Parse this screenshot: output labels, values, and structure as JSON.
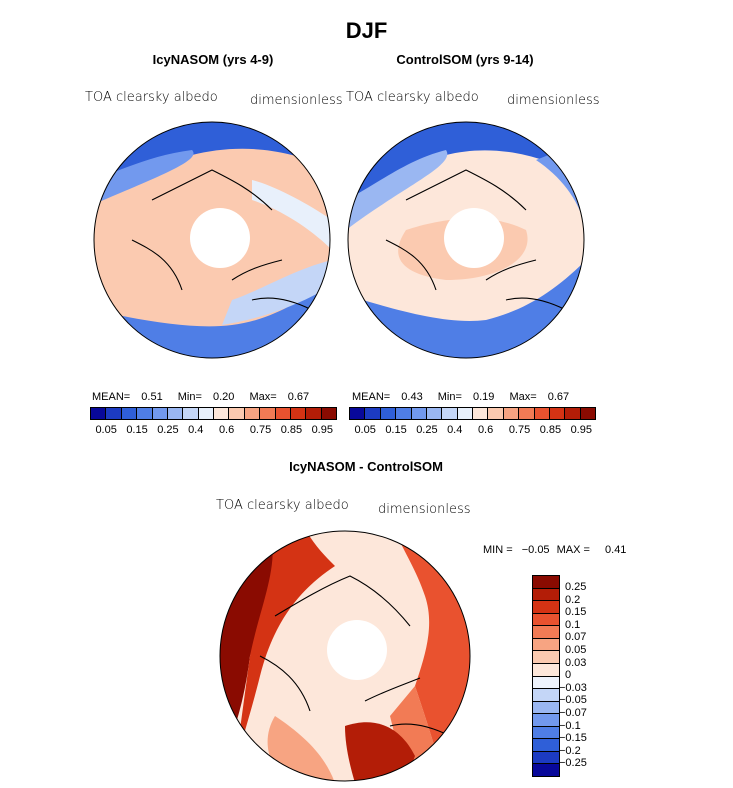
{
  "title": "DJF",
  "panels": [
    {
      "name": "IcyNASOM (yrs 4-9)",
      "variable": "TOA clearsky albedo",
      "units": "dimensionless",
      "mean_label": "MEAN=",
      "mean": "0.51",
      "min_label": "Min=",
      "min": "0.20",
      "max_label": "Max=",
      "max": "0.67"
    },
    {
      "name": "ControlSOM (yrs 9-14)",
      "variable": "TOA clearsky albedo",
      "units": "dimensionless",
      "mean_label": "MEAN=",
      "mean": "0.43",
      "min_label": "Min=",
      "min": "0.19",
      "max_label": "Max=",
      "max": "0.67"
    }
  ],
  "colorbar_top": {
    "colors": [
      "#08089a",
      "#1c3bc2",
      "#2f5fd8",
      "#4f7ee6",
      "#7299ee",
      "#9ab7f2",
      "#c4d6f7",
      "#e8f0fb",
      "#fde7da",
      "#fbcab0",
      "#f7a482",
      "#f27b55",
      "#e9522f",
      "#d43314",
      "#b31d07",
      "#8a0b01"
    ],
    "tick_labels": [
      "0.05",
      "0.15",
      "0.25",
      "0.4",
      "0.6",
      "0.75",
      "0.85",
      "0.95"
    ]
  },
  "diff": {
    "name": "IcyNASOM - ControlSOM",
    "variable": "TOA clearsky albedo",
    "units": "dimensionless",
    "min_label": "MIN =",
    "min": "−0.05",
    "max_label": "MAX =",
    "max": "0.41",
    "colors": [
      "#8a0b01",
      "#b31d07",
      "#d43314",
      "#e9522f",
      "#f27b55",
      "#f7a482",
      "#fbcab0",
      "#fde7da",
      "#eef3fc",
      "#c4d6f7",
      "#9ab7f2",
      "#7299ee",
      "#4f7ee6",
      "#2f5fd8",
      "#1c3bc2",
      "#08089a"
    ],
    "labels": [
      "0.25",
      "0.2",
      "0.15",
      "0.1",
      "0.07",
      "0.05",
      "0.03",
      "0",
      "−0.03",
      "−0.05",
      "−0.07",
      "−0.1",
      "−0.15",
      "−0.2",
      "−0.25"
    ]
  },
  "map_colors": {
    "ocean_low": "#2f5fd8",
    "ocean_mid": "#4f7ee6",
    "light_blue": "#c4d6f7",
    "pale": "#fde7da",
    "salmon": "#fbcab0",
    "orange": "#f27b55",
    "red": "#d43314",
    "dark_red": "#8a0b01"
  }
}
